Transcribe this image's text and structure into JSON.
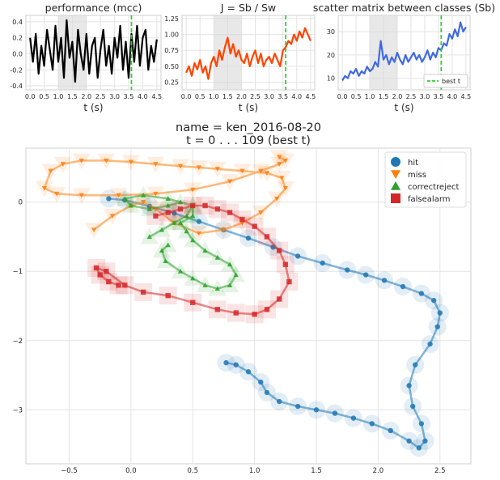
{
  "chart_data": [
    {
      "type": "line",
      "title": "performance (mcc)",
      "xlabel": "t (s)",
      "ylabel": "",
      "xlim": [
        -0.15,
        4.65
      ],
      "ylim": [
        -0.45,
        0.48
      ],
      "xticks": [
        "0.0",
        "0.5",
        "1.0",
        "1.5",
        "2.0",
        "2.5",
        "3.0",
        "3.5",
        "4.0",
        "4.5"
      ],
      "yticks": [
        "-0.4",
        "-0.2",
        "0.0",
        "0.2",
        "0.4"
      ],
      "shaded_span": [
        1.0,
        2.0
      ],
      "best_t": 3.6,
      "series": [
        {
          "color": "#000000",
          "x": [
            0.0,
            0.1,
            0.2,
            0.3,
            0.4,
            0.5,
            0.6,
            0.7,
            0.8,
            0.9,
            1.0,
            1.1,
            1.2,
            1.3,
            1.4,
            1.5,
            1.6,
            1.7,
            1.8,
            1.9,
            2.0,
            2.1,
            2.2,
            2.3,
            2.4,
            2.5,
            2.6,
            2.7,
            2.8,
            2.9,
            3.0,
            3.1,
            3.2,
            3.3,
            3.4,
            3.5,
            3.6,
            3.7,
            3.8,
            3.9,
            4.0,
            4.1,
            4.2,
            4.3,
            4.4,
            4.5
          ],
          "y": [
            0.2,
            -0.1,
            0.25,
            -0.25,
            0.1,
            -0.15,
            0.3,
            0.05,
            -0.2,
            0.35,
            -0.1,
            0.2,
            -0.3,
            0.42,
            -0.05,
            0.15,
            -0.35,
            0.3,
            0.0,
            -0.2,
            0.25,
            -0.25,
            0.1,
            0.2,
            -0.3,
            0.05,
            0.3,
            -0.15,
            0.1,
            -0.25,
            0.2,
            -0.05,
            0.35,
            -0.2,
            0.15,
            -0.3,
            0.25,
            -0.1,
            0.35,
            -0.15,
            0.2,
            0.3,
            -0.2,
            0.1,
            -0.1,
            0.18
          ]
        }
      ]
    },
    {
      "type": "line",
      "title": "J = Sb / Sw",
      "xlabel": "t (s)",
      "ylabel": "",
      "xlim": [
        -0.15,
        4.65
      ],
      "ylim": [
        0.13,
        1.3
      ],
      "xticks": [
        "0.0",
        "0.5",
        "1.0",
        "1.5",
        "2.0",
        "2.5",
        "3.0",
        "3.5",
        "4.0",
        "4.5"
      ],
      "yticks": [
        "0.25",
        "0.50",
        "0.75",
        "1.00",
        "1.25"
      ],
      "shaded_span": [
        1.0,
        2.0
      ],
      "best_t": 3.6,
      "series": [
        {
          "color": "#ff4500",
          "x": [
            0.0,
            0.1,
            0.2,
            0.3,
            0.4,
            0.5,
            0.6,
            0.7,
            0.8,
            0.9,
            1.0,
            1.1,
            1.2,
            1.3,
            1.4,
            1.5,
            1.6,
            1.7,
            1.8,
            1.9,
            2.0,
            2.1,
            2.2,
            2.3,
            2.4,
            2.5,
            2.6,
            2.7,
            2.8,
            2.9,
            3.0,
            3.1,
            3.2,
            3.3,
            3.4,
            3.5,
            3.6,
            3.7,
            3.8,
            3.9,
            4.0,
            4.1,
            4.2,
            4.3,
            4.4,
            4.5
          ],
          "y": [
            0.4,
            0.5,
            0.35,
            0.55,
            0.45,
            0.6,
            0.4,
            0.5,
            0.3,
            0.55,
            0.65,
            0.5,
            0.75,
            0.6,
            0.8,
            0.95,
            0.7,
            0.85,
            0.65,
            0.75,
            0.6,
            0.55,
            0.7,
            0.5,
            0.65,
            0.75,
            0.55,
            0.7,
            0.5,
            0.6,
            0.65,
            0.55,
            0.7,
            0.6,
            0.5,
            0.75,
            0.8,
            0.9,
            0.85,
            1.0,
            0.9,
            1.05,
            0.95,
            1.1,
            1.0,
            0.9
          ]
        }
      ]
    },
    {
      "type": "line",
      "title": "scatter matrix between classes (Sb)",
      "xlabel": "t (s)",
      "ylabel": "",
      "xlim": [
        -0.15,
        4.65
      ],
      "ylim": [
        5,
        37
      ],
      "xticks": [
        "0.0",
        "0.5",
        "1.0",
        "1.5",
        "2.0",
        "2.5",
        "3.0",
        "3.5",
        "4.0",
        "4.5"
      ],
      "yticks": [
        "10",
        "20",
        "30"
      ],
      "shaded_span": [
        1.0,
        2.0
      ],
      "best_t": 3.6,
      "legend": {
        "label": "best t",
        "placement": "lower right"
      },
      "series": [
        {
          "color": "#4169e1",
          "x": [
            0.0,
            0.1,
            0.2,
            0.3,
            0.4,
            0.5,
            0.6,
            0.7,
            0.8,
            0.9,
            1.0,
            1.1,
            1.2,
            1.3,
            1.4,
            1.5,
            1.6,
            1.7,
            1.8,
            1.9,
            2.0,
            2.1,
            2.2,
            2.3,
            2.4,
            2.5,
            2.6,
            2.7,
            2.8,
            2.9,
            3.0,
            3.1,
            3.2,
            3.3,
            3.4,
            3.5,
            3.6,
            3.7,
            3.8,
            3.9,
            4.0,
            4.1,
            4.2,
            4.3,
            4.4,
            4.5
          ],
          "y": [
            9,
            11,
            10,
            13,
            12,
            14,
            11,
            13,
            12,
            15,
            13,
            14,
            17,
            15,
            26,
            18,
            20,
            16,
            19,
            17,
            21,
            18,
            16,
            20,
            17,
            19,
            21,
            18,
            20,
            17,
            19,
            22,
            18,
            21,
            19,
            23,
            22,
            25,
            24,
            29,
            27,
            31,
            28,
            34,
            30,
            32
          ]
        }
      ]
    },
    {
      "type": "scatter",
      "title": "name = ken_2016-08-20\n t = 0 . . .  109 (best t)",
      "xlabel": "",
      "ylabel": "",
      "xlim": [
        -0.85,
        2.75
      ],
      "ylim": [
        -3.78,
        0.78
      ],
      "xticks": [
        "−0.5",
        "0.0",
        "0.5",
        "1.0",
        "1.5",
        "2.0",
        "2.5"
      ],
      "yticks": [
        "−3",
        "−2",
        "−1",
        "0"
      ],
      "legend": {
        "placement": "upper right"
      },
      "series": [
        {
          "name": "hit",
          "color": "#1f77b4",
          "marker": "circle",
          "x": [
            0.77,
            0.85,
            0.95,
            1.05,
            1.1,
            1.2,
            1.35,
            1.5,
            1.65,
            1.8,
            1.95,
            2.1,
            2.25,
            2.33,
            2.38,
            2.35,
            2.28,
            2.25,
            2.3,
            2.42,
            2.48,
            2.5,
            2.45,
            2.35,
            2.2,
            2.05,
            1.9,
            1.75,
            1.55,
            1.35,
            1.15,
            0.95,
            0.75,
            0.55,
            0.35,
            0.15,
            -0.05,
            -0.18
          ],
          "y": [
            -2.32,
            -2.35,
            -2.45,
            -2.6,
            -2.75,
            -2.88,
            -2.95,
            -3.0,
            -3.05,
            -3.12,
            -3.2,
            -3.3,
            -3.45,
            -3.55,
            -3.45,
            -3.2,
            -2.95,
            -2.65,
            -2.35,
            -2.05,
            -1.8,
            -1.6,
            -1.42,
            -1.32,
            -1.22,
            -1.13,
            -1.05,
            -0.98,
            -0.88,
            -0.78,
            -0.65,
            -0.52,
            -0.4,
            -0.28,
            -0.16,
            -0.06,
            0.03,
            0.05
          ]
        },
        {
          "name": "miss",
          "color": "#ff7f0e",
          "marker": "triangle-down",
          "x": [
            -0.3,
            -0.15,
            0.0,
            0.1,
            0.2,
            0.35,
            0.55,
            0.75,
            0.9,
            1.05,
            1.18,
            1.25,
            1.22,
            1.1,
            0.9,
            0.7,
            0.55,
            0.4,
            0.2,
            0.0,
            -0.2,
            -0.4,
            -0.55,
            -0.65,
            -0.7,
            -0.6,
            -0.4,
            -0.1,
            0.2,
            0.5,
            0.8,
            1.05,
            1.2,
            1.25,
            1.2
          ],
          "y": [
            -0.4,
            -0.2,
            -0.05,
            0.0,
            -0.1,
            -0.3,
            -0.45,
            -0.4,
            -0.3,
            -0.15,
            0.05,
            0.2,
            0.35,
            0.42,
            0.45,
            0.48,
            0.5,
            0.52,
            0.55,
            0.58,
            0.6,
            0.6,
            0.55,
            0.45,
            0.2,
            0.12,
            0.1,
            0.1,
            0.12,
            0.18,
            0.3,
            0.45,
            0.55,
            0.6,
            0.65
          ]
        },
        {
          "name": "correctreject",
          "color": "#2ca02c",
          "marker": "triangle-up",
          "x": [
            0.3,
            0.25,
            0.28,
            0.4,
            0.5,
            0.6,
            0.7,
            0.8,
            0.85,
            0.8,
            0.7,
            0.6,
            0.5,
            0.45,
            0.4,
            0.5,
            0.5,
            0.4,
            0.3,
            0.15,
            0.0,
            -0.05,
            0.1,
            0.3,
            0.5,
            0.45,
            0.35,
            0.25,
            0.15
          ],
          "y": [
            -0.62,
            -0.7,
            -0.85,
            -1.0,
            -1.1,
            -1.2,
            -1.25,
            -1.2,
            -1.05,
            -0.9,
            -0.8,
            -0.7,
            -0.55,
            -0.42,
            -0.3,
            -0.2,
            -0.05,
            0.0,
            -0.05,
            -0.1,
            -0.05,
            0.05,
            0.1,
            0.05,
            -0.05,
            -0.2,
            -0.3,
            -0.4,
            -0.5
          ]
        },
        {
          "name": "falsealarm",
          "color": "#d62728",
          "marker": "square",
          "x": [
            -0.1,
            -0.18,
            -0.25,
            -0.28,
            -0.2,
            -0.05,
            0.1,
            0.3,
            0.5,
            0.7,
            0.85,
            1.0,
            1.1,
            1.2,
            1.28,
            1.25,
            1.2,
            1.1,
            1.0,
            0.9,
            0.8,
            0.7,
            0.6,
            0.5,
            0.4,
            0.3,
            0.2
          ],
          "y": [
            -1.2,
            -1.15,
            -1.05,
            -0.95,
            -1.0,
            -1.2,
            -1.3,
            -1.35,
            -1.45,
            -1.55,
            -1.6,
            -1.62,
            -1.55,
            -1.4,
            -1.15,
            -0.9,
            -0.7,
            -0.5,
            -0.35,
            -0.25,
            -0.15,
            -0.1,
            -0.05,
            -0.05,
            -0.1,
            -0.15,
            -0.2
          ]
        }
      ]
    }
  ]
}
